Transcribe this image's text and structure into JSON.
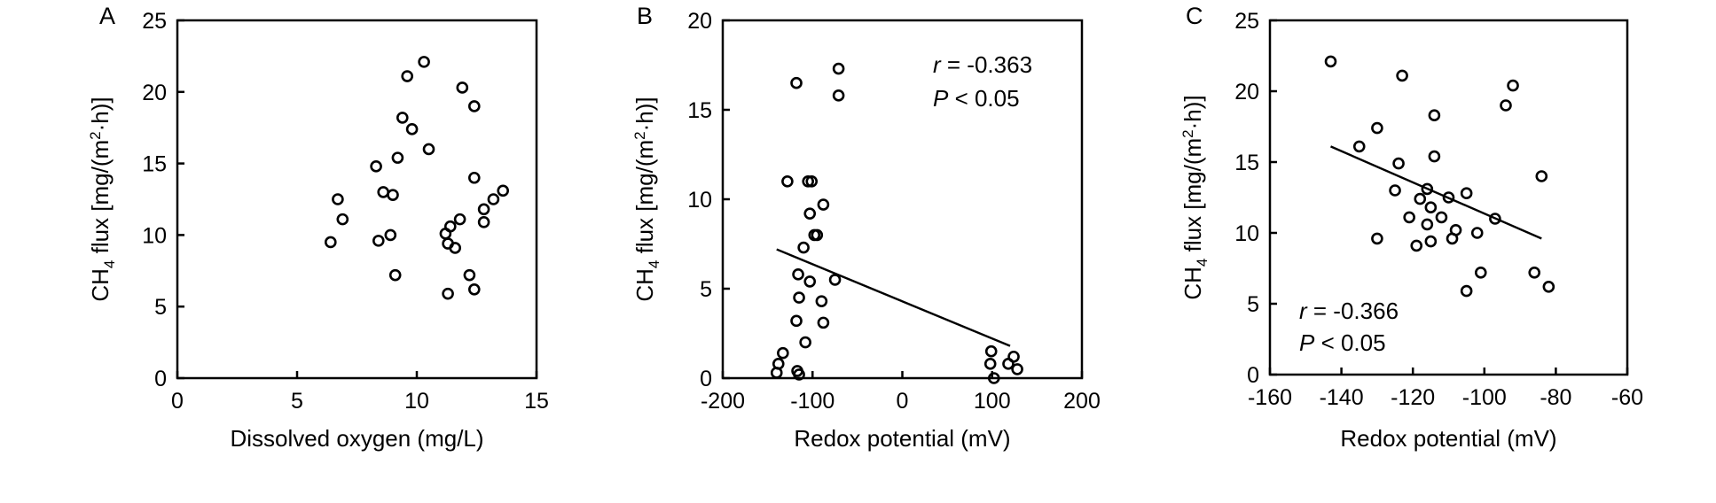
{
  "chart_data": [
    {
      "panel": "A",
      "type": "scatter",
      "xlabel": "Dissolved oxygen (mg/L)",
      "ylabel": "CH4 flux [mg/(m²·h)]",
      "xlim": [
        0,
        15
      ],
      "ylim": [
        0,
        25
      ],
      "xticks": [
        0,
        5,
        10,
        15
      ],
      "yticks": [
        0,
        5,
        10,
        15,
        20,
        25
      ],
      "xtick_labels": [
        "0",
        "5",
        "10",
        "15"
      ],
      "ytick_labels": [
        "0",
        "5",
        "10",
        "15",
        "20",
        "25"
      ],
      "grid": false,
      "points": [
        {
          "x": 6.4,
          "y": 9.5
        },
        {
          "x": 6.7,
          "y": 12.5
        },
        {
          "x": 6.9,
          "y": 11.1
        },
        {
          "x": 8.3,
          "y": 14.8
        },
        {
          "x": 8.4,
          "y": 9.6
        },
        {
          "x": 8.6,
          "y": 13.0
        },
        {
          "x": 8.9,
          "y": 10.0
        },
        {
          "x": 9.0,
          "y": 12.8
        },
        {
          "x": 9.1,
          "y": 7.2
        },
        {
          "x": 9.2,
          "y": 15.4
        },
        {
          "x": 9.4,
          "y": 18.2
        },
        {
          "x": 9.6,
          "y": 21.1
        },
        {
          "x": 9.8,
          "y": 17.4
        },
        {
          "x": 10.3,
          "y": 22.1
        },
        {
          "x": 10.5,
          "y": 16.0
        },
        {
          "x": 11.2,
          "y": 10.1
        },
        {
          "x": 11.3,
          "y": 9.4
        },
        {
          "x": 11.3,
          "y": 5.9
        },
        {
          "x": 11.4,
          "y": 10.6
        },
        {
          "x": 11.6,
          "y": 9.1
        },
        {
          "x": 11.8,
          "y": 11.1
        },
        {
          "x": 11.9,
          "y": 20.3
        },
        {
          "x": 12.2,
          "y": 7.2
        },
        {
          "x": 12.4,
          "y": 6.2
        },
        {
          "x": 12.4,
          "y": 14.0
        },
        {
          "x": 12.4,
          "y": 19.0
        },
        {
          "x": 12.8,
          "y": 10.9
        },
        {
          "x": 12.8,
          "y": 11.8
        },
        {
          "x": 13.2,
          "y": 12.5
        },
        {
          "x": 13.6,
          "y": 13.1
        }
      ]
    },
    {
      "panel": "B",
      "type": "scatter",
      "xlabel": "Redox potential (mV)",
      "ylabel": "CH4 flux [mg/(m²·h)]",
      "xlim": [
        -200,
        200
      ],
      "ylim": [
        0,
        20
      ],
      "xticks": [
        -200,
        -100,
        0,
        100,
        200
      ],
      "yticks": [
        0,
        5,
        10,
        15,
        20
      ],
      "xtick_labels": [
        "-200",
        "-100",
        "0",
        "100",
        "200"
      ],
      "ytick_labels": [
        "0",
        "5",
        "10",
        "15",
        "20"
      ],
      "grid": false,
      "annotation": {
        "r": "= -0.363",
        "p": "< 0.05"
      },
      "fit_line": {
        "x": [
          -140,
          120
        ],
        "y": [
          7.2,
          1.8
        ]
      },
      "points": [
        {
          "x": -140,
          "y": 0.3
        },
        {
          "x": -138,
          "y": 0.8
        },
        {
          "x": -133,
          "y": 1.4
        },
        {
          "x": -128,
          "y": 11.0
        },
        {
          "x": -118,
          "y": 16.5
        },
        {
          "x": -118,
          "y": 3.2
        },
        {
          "x": -117,
          "y": 0.4
        },
        {
          "x": -116,
          "y": 5.8
        },
        {
          "x": -115,
          "y": 0.2
        },
        {
          "x": -115,
          "y": 4.5
        },
        {
          "x": -110,
          "y": 7.3
        },
        {
          "x": -108,
          "y": 2.0
        },
        {
          "x": -105,
          "y": 11.0
        },
        {
          "x": -103,
          "y": 5.4
        },
        {
          "x": -103,
          "y": 9.2
        },
        {
          "x": -101,
          "y": 11.0
        },
        {
          "x": -98,
          "y": 8.0
        },
        {
          "x": -95,
          "y": 8.0
        },
        {
          "x": -90,
          "y": 4.3
        },
        {
          "x": -88,
          "y": 9.7
        },
        {
          "x": -88,
          "y": 3.1
        },
        {
          "x": -75,
          "y": 5.5
        },
        {
          "x": -71,
          "y": 15.8
        },
        {
          "x": -71,
          "y": 17.3
        },
        {
          "x": 98,
          "y": 0.8
        },
        {
          "x": 99,
          "y": 1.5
        },
        {
          "x": 102,
          "y": 0.0
        },
        {
          "x": 118,
          "y": 0.8
        },
        {
          "x": 124,
          "y": 1.2
        },
        {
          "x": 128,
          "y": 0.5
        }
      ]
    },
    {
      "panel": "C",
      "type": "scatter",
      "xlabel": "Redox potential (mV)",
      "ylabel": "CH4 flux [mg/(m²·h)]",
      "xlim": [
        -160,
        -60
      ],
      "ylim": [
        0,
        25
      ],
      "xticks": [
        -160,
        -140,
        -120,
        -100,
        -80,
        -60
      ],
      "yticks": [
        0,
        5,
        10,
        15,
        20,
        25
      ],
      "xtick_labels": [
        "-160",
        "-140",
        "-120",
        "-100",
        "-80",
        "-60"
      ],
      "ytick_labels": [
        "0",
        "5",
        "10",
        "15",
        "20",
        "25"
      ],
      "grid": false,
      "annotation": {
        "r": "= -0.366",
        "p": "< 0.05"
      },
      "fit_line": {
        "x": [
          -143,
          -84
        ],
        "y": [
          16.1,
          9.6
        ]
      },
      "points": [
        {
          "x": -143,
          "y": 22.1
        },
        {
          "x": -135,
          "y": 16.1
        },
        {
          "x": -130,
          "y": 17.4
        },
        {
          "x": -130,
          "y": 9.6
        },
        {
          "x": -125,
          "y": 13.0
        },
        {
          "x": -124,
          "y": 14.9
        },
        {
          "x": -123,
          "y": 21.1
        },
        {
          "x": -121,
          "y": 11.1
        },
        {
          "x": -119,
          "y": 9.1
        },
        {
          "x": -118,
          "y": 12.4
        },
        {
          "x": -116,
          "y": 13.1
        },
        {
          "x": -116,
          "y": 10.6
        },
        {
          "x": -115,
          "y": 11.8
        },
        {
          "x": -115,
          "y": 9.4
        },
        {
          "x": -114,
          "y": 18.3
        },
        {
          "x": -114,
          "y": 15.4
        },
        {
          "x": -112,
          "y": 11.1
        },
        {
          "x": -110,
          "y": 12.5
        },
        {
          "x": -109,
          "y": 9.6
        },
        {
          "x": -108,
          "y": 10.2
        },
        {
          "x": -105,
          "y": 12.8
        },
        {
          "x": -105,
          "y": 5.9
        },
        {
          "x": -102,
          "y": 10.0
        },
        {
          "x": -101,
          "y": 7.2
        },
        {
          "x": -97,
          "y": 11.0
        },
        {
          "x": -94,
          "y": 19.0
        },
        {
          "x": -92,
          "y": 20.4
        },
        {
          "x": -86,
          "y": 7.2
        },
        {
          "x": -84,
          "y": 14.0
        },
        {
          "x": -82,
          "y": 6.2
        }
      ]
    }
  ]
}
